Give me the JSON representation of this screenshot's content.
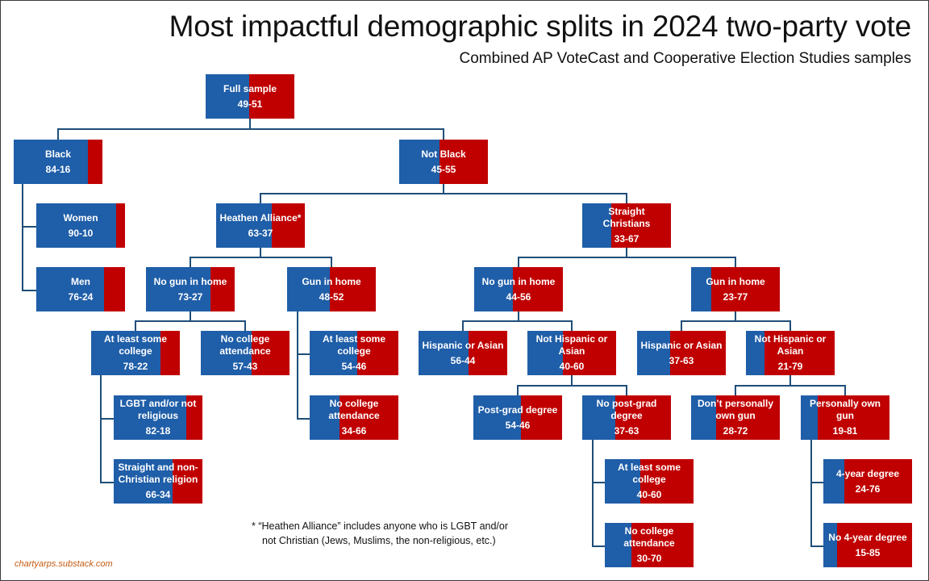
{
  "colors": {
    "dem": "#1f5ea8",
    "rep": "#c00000",
    "connector": "#1f4e79"
  },
  "chart_data": {
    "type": "tree",
    "title": "Most impactful demographic splits in 2024 two-party vote",
    "subtitle": "Combined AP VoteCast and Cooperative Election Studies samples",
    "footnote": [
      "* “Heathen Alliance” includes anyone who is LGBT and/or",
      "not Christian (Jews, Muslims, the non-religious, etc.)"
    ],
    "credit": "chartyarps.substack.com",
    "nodes": [
      {
        "id": "full",
        "label": "Full sample",
        "value": "49-51",
        "dem": 49
      },
      {
        "id": "black",
        "label": "Black",
        "value": "84-16",
        "dem": 84,
        "parent": "full"
      },
      {
        "id": "black-women",
        "label": "Women",
        "value": "90-10",
        "dem": 90,
        "parent": "black"
      },
      {
        "id": "black-men",
        "label": "Men",
        "value": "76-24",
        "dem": 76,
        "parent": "black"
      },
      {
        "id": "notblack",
        "label": "Not Black",
        "value": "45-55",
        "dem": 45,
        "parent": "full"
      },
      {
        "id": "heathen",
        "label": "Heathen Alliance*",
        "value": "63-37",
        "dem": 63,
        "parent": "notblack"
      },
      {
        "id": "h-nogun",
        "label": "No gun in home",
        "value": "73-27",
        "dem": 73,
        "parent": "heathen"
      },
      {
        "id": "h-ng-college",
        "label": "At least some college",
        "value": "78-22",
        "dem": 78,
        "parent": "h-nogun"
      },
      {
        "id": "h-ng-c-lgbt",
        "label": "LGBT and/or not religious",
        "value": "82-18",
        "dem": 82,
        "parent": "h-ng-college"
      },
      {
        "id": "h-ng-c-straight",
        "label": "Straight and non-Christian religion",
        "value": "66-34",
        "dem": 66,
        "parent": "h-ng-college"
      },
      {
        "id": "h-ng-nocollege",
        "label": "No college attendance",
        "value": "57-43",
        "dem": 57,
        "parent": "h-nogun"
      },
      {
        "id": "h-gun",
        "label": "Gun in home",
        "value": "48-52",
        "dem": 48,
        "parent": "heathen"
      },
      {
        "id": "h-g-college",
        "label": "At least some college",
        "value": "54-46",
        "dem": 54,
        "parent": "h-gun"
      },
      {
        "id": "h-g-nocollege",
        "label": "No college attendance",
        "value": "34-66",
        "dem": 34,
        "parent": "h-gun"
      },
      {
        "id": "christians",
        "label": "Straight Christians",
        "value": "33-67",
        "dem": 33,
        "parent": "notblack"
      },
      {
        "id": "c-nogun",
        "label": "No gun in home",
        "value": "44-56",
        "dem": 44,
        "parent": "christians"
      },
      {
        "id": "c-ng-hisp",
        "label": "Hispanic or Asian",
        "value": "56-44",
        "dem": 56,
        "parent": "c-nogun"
      },
      {
        "id": "c-ng-nothisp",
        "label": "Not Hispanic or Asian",
        "value": "40-60",
        "dem": 40,
        "parent": "c-nogun"
      },
      {
        "id": "c-ng-nh-postgrad",
        "label": "Post-grad degree",
        "value": "54-46",
        "dem": 54,
        "parent": "c-ng-nothisp"
      },
      {
        "id": "c-ng-nh-nopostgrad",
        "label": "No post-grad degree",
        "value": "37-63",
        "dem": 37,
        "parent": "c-ng-nothisp"
      },
      {
        "id": "c-ng-nh-np-college",
        "label": "At least some college",
        "value": "40-60",
        "dem": 40,
        "parent": "c-ng-nh-nopostgrad"
      },
      {
        "id": "c-ng-nh-np-nocollege",
        "label": "No college attendance",
        "value": "30-70",
        "dem": 30,
        "parent": "c-ng-nh-nopostgrad"
      },
      {
        "id": "c-gun",
        "label": "Gun in home",
        "value": "23-77",
        "dem": 23,
        "parent": "christians"
      },
      {
        "id": "c-g-hisp",
        "label": "Hispanic or Asian",
        "value": "37-63",
        "dem": 37,
        "parent": "c-gun"
      },
      {
        "id": "c-g-nothisp",
        "label": "Not Hispanic or Asian",
        "value": "21-79",
        "dem": 21,
        "parent": "c-gun"
      },
      {
        "id": "c-g-nh-noown",
        "label": "Don’t personally own gun",
        "value": "28-72",
        "dem": 28,
        "parent": "c-g-nothisp"
      },
      {
        "id": "c-g-nh-own",
        "label": "Personally own gun",
        "value": "19-81",
        "dem": 19,
        "parent": "c-g-nothisp"
      },
      {
        "id": "c-g-nh-o-4yr",
        "label": "4-year degree",
        "value": "24-76",
        "dem": 24,
        "parent": "c-g-nh-own"
      },
      {
        "id": "c-g-nh-o-no4yr",
        "label": "No 4-year degree",
        "value": "15-85",
        "dem": 15,
        "parent": "c-g-nh-own"
      }
    ]
  }
}
